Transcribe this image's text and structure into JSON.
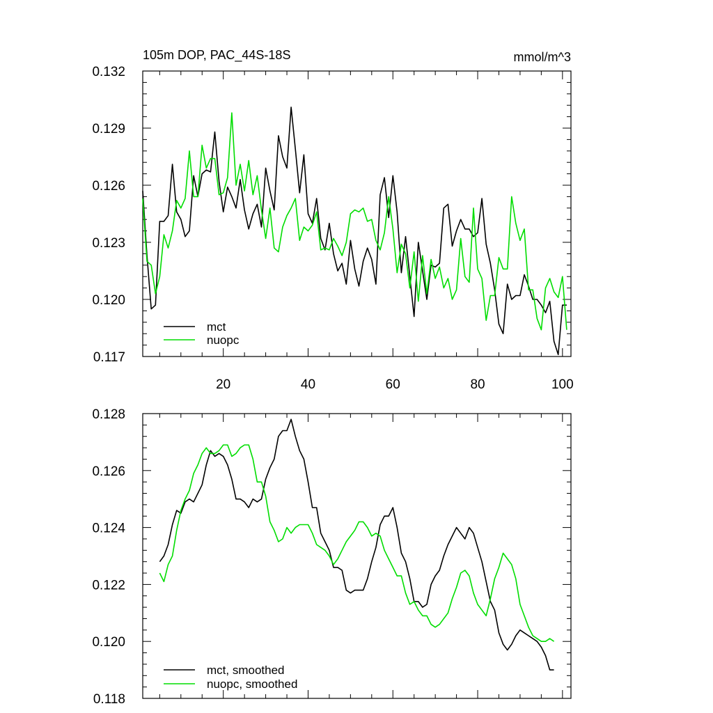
{
  "chart_data": [
    {
      "type": "line",
      "title": "105m DOP, PAC_44S-18S",
      "units": "mmol/m^3",
      "xlim": [
        1,
        102
      ],
      "ylim": [
        0.117,
        0.132
      ],
      "xticks": [
        20,
        40,
        60,
        80,
        100
      ],
      "xtick_labels": [
        "20",
        "40",
        "60",
        "80",
        "100"
      ],
      "yticks": [
        0.117,
        0.12,
        0.123,
        0.126,
        0.129,
        0.132
      ],
      "ytick_labels": [
        "0.117",
        "0.120",
        "0.123",
        "0.126",
        "0.129",
        "0.132"
      ],
      "legend": [
        "mct",
        "nuopc"
      ],
      "legend_position": "bottom-left",
      "series": [
        {
          "name": "mct",
          "color": "#000000",
          "x": [
            1,
            2,
            3,
            4,
            5,
            6,
            7,
            8,
            9,
            10,
            11,
            12,
            13,
            14,
            15,
            16,
            17,
            18,
            19,
            20,
            21,
            22,
            23,
            24,
            25,
            26,
            27,
            28,
            29,
            30,
            31,
            32,
            33,
            34,
            35,
            36,
            37,
            38,
            39,
            40,
            41,
            42,
            43,
            44,
            45,
            46,
            47,
            48,
            49,
            50,
            51,
            52,
            53,
            54,
            55,
            56,
            57,
            58,
            59,
            60,
            61,
            62,
            63,
            64,
            65,
            66,
            67,
            68,
            69,
            70,
            71,
            72,
            73,
            74,
            75,
            76,
            77,
            78,
            79,
            80,
            81,
            82,
            83,
            84,
            85,
            86,
            87,
            88,
            89,
            90,
            91,
            92,
            93,
            94,
            95,
            96,
            97,
            98,
            99,
            100,
            101
          ],
          "values": [
            0.1257,
            0.1223,
            0.1195,
            0.1197,
            0.1241,
            0.1241,
            0.1244,
            0.1271,
            0.1246,
            0.1242,
            0.1233,
            0.1236,
            0.1265,
            0.1254,
            0.1266,
            0.1268,
            0.1267,
            0.1288,
            0.1262,
            0.1246,
            0.1259,
            0.1254,
            0.1248,
            0.1263,
            0.1247,
            0.1237,
            0.1245,
            0.125,
            0.1238,
            0.1269,
            0.1257,
            0.1247,
            0.1286,
            0.1275,
            0.1269,
            0.1301,
            0.1279,
            0.1256,
            0.1276,
            0.1245,
            0.124,
            0.1253,
            0.1232,
            0.1226,
            0.124,
            0.1224,
            0.1215,
            0.1219,
            0.1208,
            0.1231,
            0.1216,
            0.1207,
            0.122,
            0.1227,
            0.1221,
            0.1208,
            0.1255,
            0.1264,
            0.1243,
            0.1265,
            0.1246,
            0.1214,
            0.1233,
            0.1212,
            0.1191,
            0.123,
            0.1215,
            0.12,
            0.1218,
            0.1217,
            0.1219,
            0.1248,
            0.125,
            0.1228,
            0.1236,
            0.1242,
            0.1237,
            0.1237,
            0.1233,
            0.1235,
            0.1253,
            0.1229,
            0.1219,
            0.1205,
            0.1187,
            0.1182,
            0.1208,
            0.12,
            0.1202,
            0.1202,
            0.1213,
            0.1207,
            0.12,
            0.12,
            0.1197,
            0.1193,
            0.1199,
            0.1178,
            0.1171,
            0.1197,
            0.1197
          ]
        },
        {
          "name": "nuopc",
          "color": "#00dd00",
          "x": [
            1,
            2,
            3,
            4,
            5,
            6,
            7,
            8,
            9,
            10,
            11,
            12,
            13,
            14,
            15,
            16,
            17,
            18,
            19,
            20,
            21,
            22,
            23,
            24,
            25,
            26,
            27,
            28,
            29,
            30,
            31,
            32,
            33,
            34,
            35,
            36,
            37,
            38,
            39,
            40,
            41,
            42,
            43,
            44,
            45,
            46,
            47,
            48,
            49,
            50,
            51,
            52,
            53,
            54,
            55,
            56,
            57,
            58,
            59,
            60,
            61,
            62,
            63,
            64,
            65,
            66,
            67,
            68,
            69,
            70,
            71,
            72,
            73,
            74,
            75,
            76,
            77,
            78,
            79,
            80,
            81,
            82,
            83,
            84,
            85,
            86,
            87,
            88,
            89,
            90,
            91,
            92,
            93,
            94,
            95,
            96,
            97,
            98,
            99,
            100,
            101
          ],
          "values": [
            0.1253,
            0.122,
            0.1218,
            0.1203,
            0.1212,
            0.1234,
            0.1227,
            0.1236,
            0.1252,
            0.1248,
            0.1253,
            0.1278,
            0.1254,
            0.1254,
            0.1281,
            0.1269,
            0.1274,
            0.1274,
            0.1255,
            0.1256,
            0.1264,
            0.1298,
            0.126,
            0.1271,
            0.1257,
            0.1273,
            0.1255,
            0.1265,
            0.1247,
            0.1232,
            0.1248,
            0.1227,
            0.1225,
            0.1238,
            0.1244,
            0.1248,
            0.1253,
            0.1231,
            0.1238,
            0.1236,
            0.1239,
            0.1246,
            0.1226,
            0.1227,
            0.1226,
            0.1232,
            0.1228,
            0.1223,
            0.123,
            0.1245,
            0.1247,
            0.1246,
            0.1248,
            0.1241,
            0.1242,
            0.1231,
            0.1226,
            0.1235,
            0.1254,
            0.1237,
            0.1214,
            0.1229,
            0.1224,
            0.1206,
            0.1225,
            0.1199,
            0.1223,
            0.1203,
            0.1221,
            0.1211,
            0.1217,
            0.1206,
            0.1211,
            0.12,
            0.1205,
            0.1232,
            0.1212,
            0.1209,
            0.1248,
            0.1216,
            0.1211,
            0.1189,
            0.1202,
            0.1202,
            0.1222,
            0.1216,
            0.1216,
            0.1254,
            0.124,
            0.1231,
            0.1237,
            0.1205,
            0.1205,
            0.119,
            0.1184,
            0.1206,
            0.1211,
            0.1204,
            0.1201,
            0.1212,
            0.1184
          ]
        }
      ]
    },
    {
      "type": "line",
      "xlim": [
        1,
        102
      ],
      "ylim": [
        0.118,
        0.128
      ],
      "xticks": [
        20,
        40,
        60,
        80,
        100
      ],
      "yticks": [
        0.118,
        0.12,
        0.122,
        0.124,
        0.126,
        0.128
      ],
      "ytick_labels": [
        "0.118",
        "0.120",
        "0.122",
        "0.124",
        "0.126",
        "0.128"
      ],
      "legend": [
        "mct, smoothed",
        "nuopc, smoothed"
      ],
      "legend_position": "bottom-left",
      "series": [
        {
          "name": "mct, smoothed",
          "color": "#000000",
          "x": [
            5,
            6,
            7,
            8,
            9,
            10,
            11,
            12,
            13,
            14,
            15,
            16,
            17,
            18,
            19,
            20,
            21,
            22,
            23,
            24,
            25,
            26,
            27,
            28,
            29,
            30,
            31,
            32,
            33,
            34,
            35,
            36,
            37,
            38,
            39,
            40,
            41,
            42,
            43,
            44,
            45,
            46,
            47,
            48,
            49,
            50,
            51,
            52,
            53,
            54,
            55,
            56,
            57,
            58,
            59,
            60,
            61,
            62,
            63,
            64,
            65,
            66,
            67,
            68,
            69,
            70,
            71,
            72,
            73,
            74,
            75,
            76,
            77,
            78,
            79,
            80,
            81,
            82,
            83,
            84,
            85,
            86,
            87,
            88,
            89,
            90,
            91,
            92,
            93,
            94,
            95,
            96,
            97,
            98
          ],
          "values": [
            0.1228,
            0.123,
            0.1234,
            0.1241,
            0.1246,
            0.1245,
            0.1249,
            0.125,
            0.1249,
            0.1252,
            0.1255,
            0.1262,
            0.1267,
            0.1265,
            0.1266,
            0.1265,
            0.1262,
            0.1257,
            0.125,
            0.125,
            0.1249,
            0.1247,
            0.125,
            0.1249,
            0.125,
            0.1257,
            0.1261,
            0.1264,
            0.1272,
            0.1274,
            0.1274,
            0.1278,
            0.1272,
            0.1267,
            0.1264,
            0.1256,
            0.1247,
            0.1247,
            0.1238,
            0.1235,
            0.1232,
            0.1226,
            0.1226,
            0.1225,
            0.1218,
            0.1217,
            0.1218,
            0.1218,
            0.1218,
            0.1222,
            0.1228,
            0.1233,
            0.1241,
            0.1244,
            0.1244,
            0.1247,
            0.124,
            0.1231,
            0.1228,
            0.1222,
            0.1214,
            0.1214,
            0.1212,
            0.1213,
            0.122,
            0.1223,
            0.1225,
            0.123,
            0.1234,
            0.1237,
            0.124,
            0.1238,
            0.1236,
            0.124,
            0.1238,
            0.1233,
            0.1228,
            0.1221,
            0.1214,
            0.1211,
            0.1203,
            0.1199,
            0.1197,
            0.1199,
            0.1202,
            0.1204,
            0.1203,
            0.1202,
            0.1201,
            0.12,
            0.1198,
            0.1195,
            0.119,
            0.119
          ]
        },
        {
          "name": "nuopc, smoothed",
          "color": "#00dd00",
          "x": [
            5,
            6,
            7,
            8,
            9,
            10,
            11,
            12,
            13,
            14,
            15,
            16,
            17,
            18,
            19,
            20,
            21,
            22,
            23,
            24,
            25,
            26,
            27,
            28,
            29,
            30,
            31,
            32,
            33,
            34,
            35,
            36,
            37,
            38,
            39,
            40,
            41,
            42,
            43,
            44,
            45,
            46,
            47,
            48,
            49,
            50,
            51,
            52,
            53,
            54,
            55,
            56,
            57,
            58,
            59,
            60,
            61,
            62,
            63,
            64,
            65,
            66,
            67,
            68,
            69,
            70,
            71,
            72,
            73,
            74,
            75,
            76,
            77,
            78,
            79,
            80,
            81,
            82,
            83,
            84,
            85,
            86,
            87,
            88,
            89,
            90,
            91,
            92,
            93,
            94,
            95,
            96,
            97,
            98
          ],
          "values": [
            0.1224,
            0.1221,
            0.1227,
            0.123,
            0.1239,
            0.1246,
            0.125,
            0.1253,
            0.1259,
            0.1262,
            0.1266,
            0.1268,
            0.1266,
            0.1266,
            0.1267,
            0.1269,
            0.1269,
            0.1265,
            0.1266,
            0.1268,
            0.1269,
            0.1269,
            0.1264,
            0.1256,
            0.1256,
            0.1251,
            0.1242,
            0.1239,
            0.1235,
            0.1236,
            0.124,
            0.1238,
            0.124,
            0.1241,
            0.1241,
            0.1241,
            0.1238,
            0.1234,
            0.1233,
            0.1232,
            0.123,
            0.1227,
            0.1229,
            0.1232,
            0.1235,
            0.1237,
            0.1239,
            0.1242,
            0.1242,
            0.124,
            0.1237,
            0.1238,
            0.1237,
            0.1232,
            0.1229,
            0.1226,
            0.1223,
            0.1223,
            0.1217,
            0.1213,
            0.1214,
            0.1211,
            0.1209,
            0.1209,
            0.1206,
            0.1205,
            0.1206,
            0.1208,
            0.121,
            0.1215,
            0.1219,
            0.1224,
            0.1225,
            0.1223,
            0.1217,
            0.1213,
            0.1211,
            0.1209,
            0.1215,
            0.1222,
            0.1226,
            0.1231,
            0.1229,
            0.1227,
            0.1222,
            0.1213,
            0.1209,
            0.1205,
            0.1202,
            0.1201,
            0.12,
            0.12,
            0.1201,
            0.12
          ]
        }
      ]
    }
  ]
}
